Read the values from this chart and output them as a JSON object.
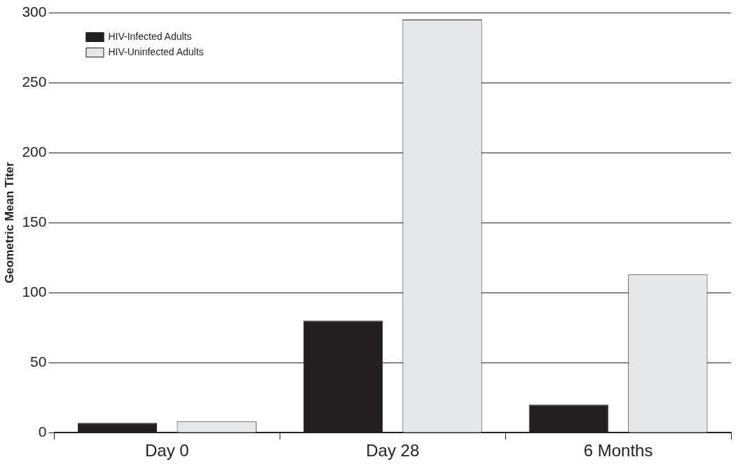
{
  "chart_data": {
    "type": "bar",
    "ylabel": "Geometric Mean Titer",
    "categories": [
      "Day 0",
      "Day 28",
      "6 Months"
    ],
    "series": [
      {
        "name": "HIV-Infected Adults",
        "color": "#231f20",
        "values": [
          7,
          80,
          20
        ]
      },
      {
        "name": "HIV-Uninfected Adults",
        "color": "#e6e7e8",
        "values": [
          8,
          295,
          113
        ]
      }
    ],
    "ylim": [
      0,
      300
    ],
    "yticks": [
      0,
      50,
      100,
      150,
      200,
      250,
      300
    ],
    "grid": "y",
    "legend": "top left"
  }
}
